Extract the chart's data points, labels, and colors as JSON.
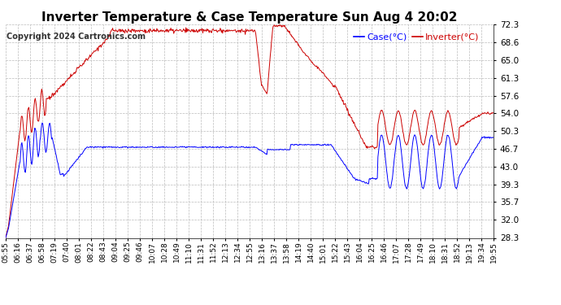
{
  "title": "Inverter Temperature & Case Temperature Sun Aug 4 20:02",
  "copyright": "Copyright 2024 Cartronics.com",
  "yticks": [
    28.3,
    32.0,
    35.7,
    39.3,
    43.0,
    46.7,
    50.3,
    54.0,
    57.6,
    61.3,
    65.0,
    68.6,
    72.3
  ],
  "ylim": [
    28.3,
    72.3
  ],
  "legend_case_label": "Case(°C)",
  "legend_inverter_label": "Inverter(°C)",
  "case_color": "#0000ff",
  "inverter_color": "#cc0000",
  "background_color": "#ffffff",
  "grid_color": "#bbbbbb",
  "title_fontsize": 11,
  "tick_fontsize": 7.5,
  "copyright_fontsize": 7,
  "legend_fontsize": 8,
  "xtick_labels": [
    "05:55",
    "06:16",
    "06:37",
    "06:58",
    "07:19",
    "07:40",
    "08:01",
    "08:22",
    "08:43",
    "09:04",
    "09:25",
    "09:46",
    "10:07",
    "10:28",
    "10:49",
    "11:10",
    "11:31",
    "11:52",
    "12:13",
    "12:34",
    "12:55",
    "13:16",
    "13:37",
    "13:58",
    "14:19",
    "14:40",
    "15:01",
    "15:22",
    "15:43",
    "16:04",
    "16:25",
    "16:46",
    "17:07",
    "17:28",
    "17:49",
    "18:10",
    "18:31",
    "18:52",
    "19:13",
    "19:34",
    "19:55"
  ],
  "n_points": 840,
  "seed": 42
}
